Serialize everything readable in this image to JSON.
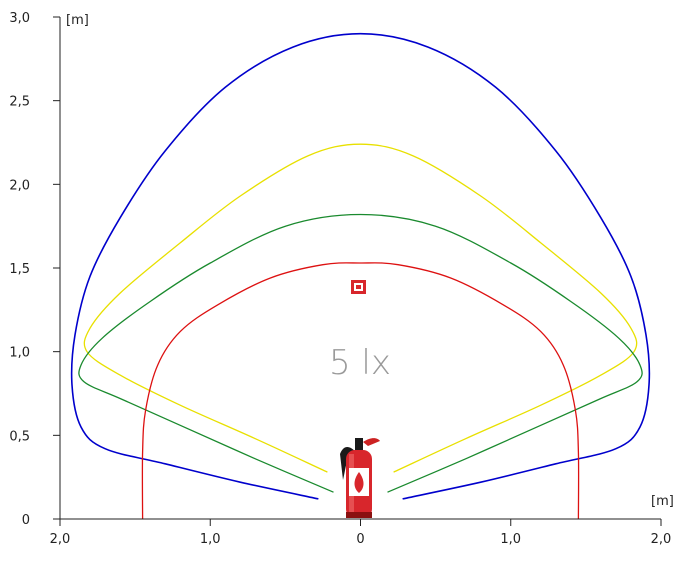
{
  "chart_data": {
    "type": "line",
    "x_unit": "[m]",
    "y_unit": "[m]",
    "xlim": [
      -2.0,
      2.0
    ],
    "ylim": [
      0,
      3.0
    ],
    "x_ticks": [
      {
        "value": -2.0,
        "label": "2,0"
      },
      {
        "value": -1.0,
        "label": "1,0"
      },
      {
        "value": 0,
        "label": "0"
      },
      {
        "value": 1.0,
        "label": "1,0"
      },
      {
        "value": 2.0,
        "label": "2,0"
      }
    ],
    "y_ticks": [
      {
        "value": 0,
        "label": "0"
      },
      {
        "value": 0.5,
        "label": "0,5"
      },
      {
        "value": 1.0,
        "label": "1,0"
      },
      {
        "value": 1.5,
        "label": "1,5"
      },
      {
        "value": 2.0,
        "label": "2,0"
      },
      {
        "value": 2.5,
        "label": "2,5"
      },
      {
        "value": 3.0,
        "label": "3,0"
      }
    ],
    "annotation": "5 lx",
    "grid": false,
    "series": [
      {
        "color": "#0000cc",
        "points": [
          [
            -0.28,
            0.12
          ],
          [
            -0.8,
            0.22
          ],
          [
            -1.3,
            0.33
          ],
          [
            -1.7,
            0.42
          ],
          [
            -1.86,
            0.55
          ],
          [
            -1.92,
            0.8
          ],
          [
            -1.9,
            1.1
          ],
          [
            -1.8,
            1.45
          ],
          [
            -1.6,
            1.8
          ],
          [
            -1.3,
            2.2
          ],
          [
            -0.9,
            2.58
          ],
          [
            -0.45,
            2.82
          ],
          [
            0,
            2.9
          ],
          [
            0.45,
            2.82
          ],
          [
            0.9,
            2.58
          ],
          [
            1.3,
            2.2
          ],
          [
            1.6,
            1.8
          ],
          [
            1.8,
            1.45
          ],
          [
            1.9,
            1.1
          ],
          [
            1.92,
            0.8
          ],
          [
            1.86,
            0.55
          ],
          [
            1.7,
            0.42
          ],
          [
            1.3,
            0.33
          ],
          [
            0.8,
            0.22
          ],
          [
            0.28,
            0.12
          ]
        ]
      },
      {
        "color": "#e8e000",
        "points": [
          [
            -0.22,
            0.28
          ],
          [
            -0.7,
            0.48
          ],
          [
            -1.2,
            0.68
          ],
          [
            -1.6,
            0.86
          ],
          [
            -1.82,
            1.0
          ],
          [
            -1.8,
            1.14
          ],
          [
            -1.6,
            1.35
          ],
          [
            -1.2,
            1.65
          ],
          [
            -0.8,
            1.93
          ],
          [
            -0.35,
            2.17
          ],
          [
            0,
            2.24
          ],
          [
            0.35,
            2.17
          ],
          [
            0.8,
            1.93
          ],
          [
            1.2,
            1.65
          ],
          [
            1.6,
            1.35
          ],
          [
            1.8,
            1.14
          ],
          [
            1.82,
            1.0
          ],
          [
            1.6,
            0.86
          ],
          [
            1.2,
            0.68
          ],
          [
            0.7,
            0.48
          ],
          [
            0.22,
            0.28
          ]
        ]
      },
      {
        "color": "#1a8a2e",
        "points": [
          [
            -0.18,
            0.16
          ],
          [
            -0.7,
            0.36
          ],
          [
            -1.2,
            0.56
          ],
          [
            -1.6,
            0.72
          ],
          [
            -1.84,
            0.82
          ],
          [
            -1.86,
            0.92
          ],
          [
            -1.72,
            1.08
          ],
          [
            -1.4,
            1.3
          ],
          [
            -1.0,
            1.53
          ],
          [
            -0.5,
            1.75
          ],
          [
            0,
            1.82
          ],
          [
            0.5,
            1.75
          ],
          [
            1.0,
            1.53
          ],
          [
            1.4,
            1.3
          ],
          [
            1.72,
            1.08
          ],
          [
            1.86,
            0.92
          ],
          [
            1.84,
            0.82
          ],
          [
            1.6,
            0.72
          ],
          [
            1.2,
            0.56
          ],
          [
            0.7,
            0.36
          ],
          [
            0.18,
            0.16
          ]
        ]
      },
      {
        "color": "#dd1111",
        "points": [
          [
            -1.45,
            0
          ],
          [
            -1.45,
            0.4
          ],
          [
            -1.43,
            0.65
          ],
          [
            -1.35,
            0.92
          ],
          [
            -1.2,
            1.12
          ],
          [
            -0.95,
            1.28
          ],
          [
            -0.6,
            1.44
          ],
          [
            -0.25,
            1.52
          ],
          [
            0,
            1.53
          ],
          [
            0.25,
            1.52
          ],
          [
            0.6,
            1.44
          ],
          [
            0.95,
            1.28
          ],
          [
            1.2,
            1.12
          ],
          [
            1.35,
            0.92
          ],
          [
            1.43,
            0.65
          ],
          [
            1.45,
            0.4
          ],
          [
            1.45,
            0
          ]
        ]
      }
    ]
  }
}
